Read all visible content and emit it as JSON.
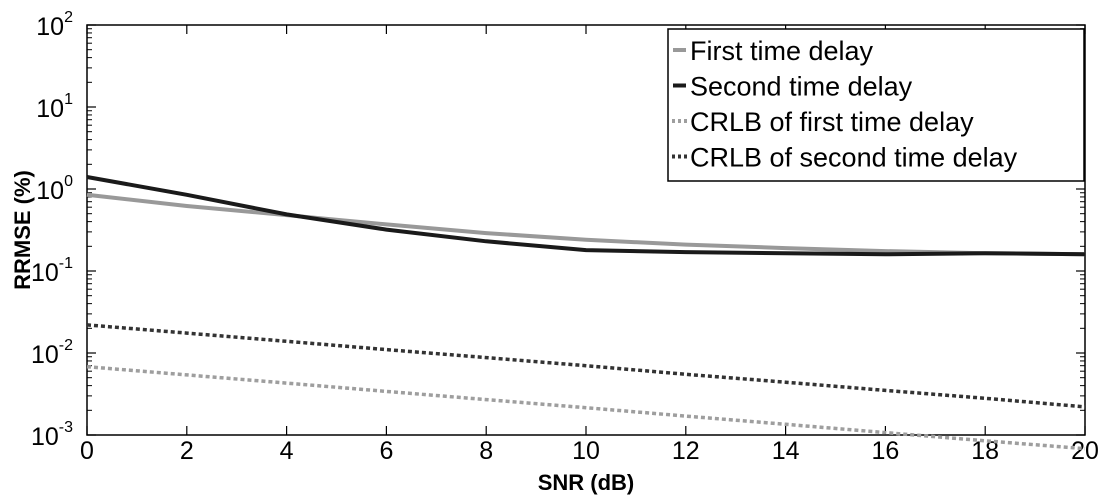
{
  "chart_data": {
    "type": "line",
    "xlabel": "SNR (dB)",
    "ylabel": "RRMSE (%)",
    "xlim": [
      0,
      20
    ],
    "ylim": [
      0.001,
      100
    ],
    "yscale": "log",
    "grid": false,
    "legend_position": "top-right",
    "x_ticks": [
      "0",
      "2",
      "4",
      "6",
      "8",
      "10",
      "12",
      "14",
      "16",
      "18",
      "20"
    ],
    "y_ticks": [
      {
        "base": "10",
        "exp": "-3"
      },
      {
        "base": "10",
        "exp": "-2"
      },
      {
        "base": "10",
        "exp": "-1"
      },
      {
        "base": "10",
        "exp": "0"
      },
      {
        "base": "10",
        "exp": "1"
      },
      {
        "base": "10",
        "exp": "2"
      }
    ],
    "series": [
      {
        "name": "First time delay",
        "color": "#999999",
        "style": "solid",
        "x": [
          0,
          2,
          4,
          6,
          8,
          10,
          12,
          14,
          16,
          18,
          20
        ],
        "y": [
          0.85,
          0.62,
          0.48,
          0.37,
          0.29,
          0.24,
          0.21,
          0.19,
          0.175,
          0.165,
          0.16
        ]
      },
      {
        "name": "Second time delay",
        "color": "#1a1a1a",
        "style": "solid",
        "x": [
          0,
          2,
          4,
          6,
          8,
          10,
          12,
          14,
          16,
          18,
          20
        ],
        "y": [
          1.4,
          0.85,
          0.49,
          0.32,
          0.23,
          0.18,
          0.17,
          0.165,
          0.16,
          0.165,
          0.16
        ]
      },
      {
        "name": "CRLB of first time delay",
        "color": "#9e9e9e",
        "style": "dotted",
        "x": [
          0,
          2,
          4,
          6,
          8,
          10,
          12,
          14,
          16,
          18,
          20
        ],
        "y": [
          0.0068,
          0.0054,
          0.0043,
          0.0034,
          0.0027,
          0.00215,
          0.0017,
          0.00135,
          0.00107,
          0.00085,
          0.00068
        ]
      },
      {
        "name": "CRLB of second time delay",
        "color": "#333333",
        "style": "dotted",
        "x": [
          0,
          2,
          4,
          6,
          8,
          10,
          12,
          14,
          16,
          18,
          20
        ],
        "y": [
          0.022,
          0.0175,
          0.0139,
          0.011,
          0.0088,
          0.007,
          0.0055,
          0.0044,
          0.0035,
          0.0028,
          0.0022
        ]
      }
    ]
  }
}
